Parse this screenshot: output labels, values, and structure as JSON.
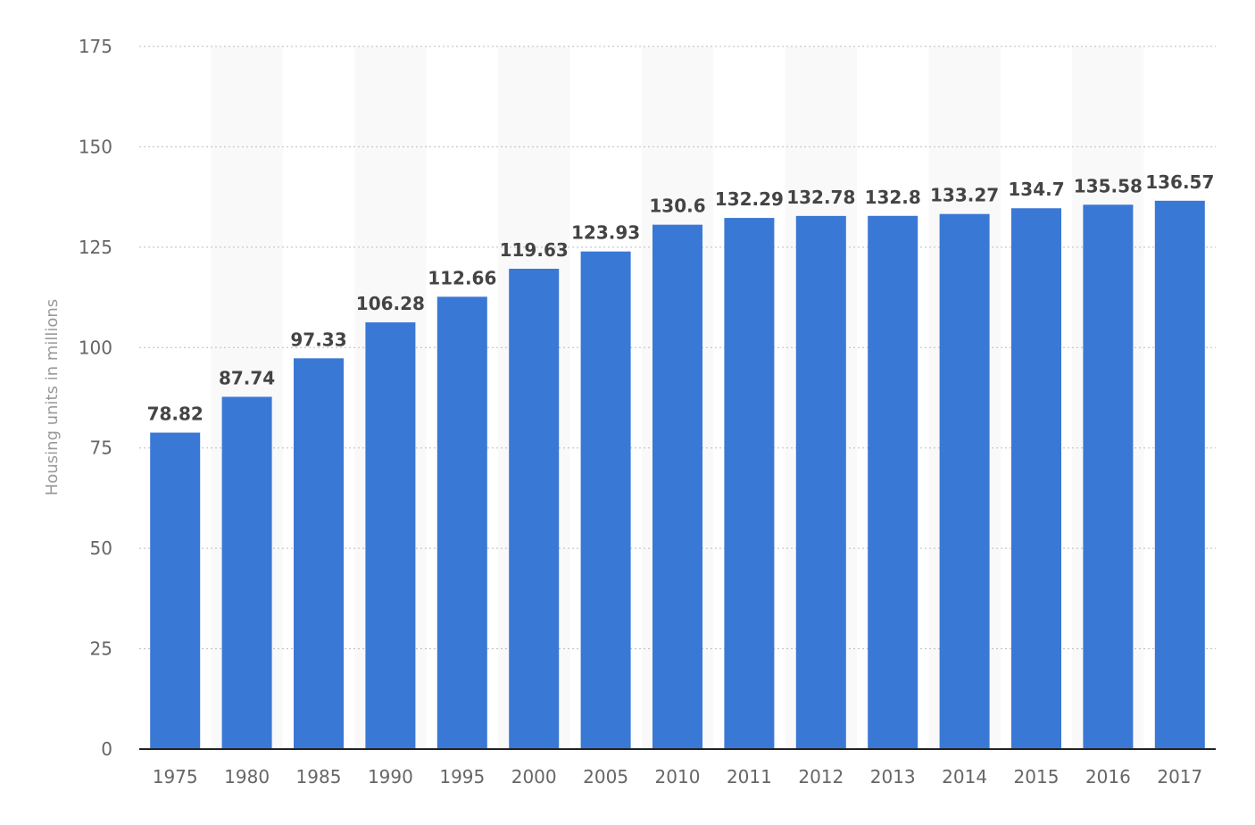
{
  "chart_data": {
    "type": "bar",
    "title": "",
    "xlabel": "",
    "ylabel": "Housing units in millions",
    "categories": [
      "1975",
      "1980",
      "1985",
      "1990",
      "1995",
      "2000",
      "2005",
      "2010",
      "2011",
      "2012",
      "2013",
      "2014",
      "2015",
      "2016",
      "2017"
    ],
    "values": [
      78.82,
      87.74,
      97.33,
      106.28,
      112.66,
      119.63,
      123.93,
      130.6,
      132.29,
      132.78,
      132.8,
      133.27,
      134.7,
      135.58,
      136.57
    ],
    "data_labels": [
      "78.82",
      "87.74",
      "97.33",
      "106.28",
      "112.66",
      "119.63",
      "123.93",
      "130.6",
      "132.29",
      "132.78",
      "132.8",
      "133.27",
      "134.7",
      "135.58",
      "136.57"
    ],
    "ylim": [
      0,
      175
    ],
    "yticks": [
      "0",
      "25",
      "50",
      "75",
      "100",
      "125",
      "150",
      "175"
    ],
    "grid": true,
    "legend": "none",
    "bar_color": "#3a78d6",
    "band_color": "#f9f9f9",
    "grid_color": "#bbbbbb"
  }
}
